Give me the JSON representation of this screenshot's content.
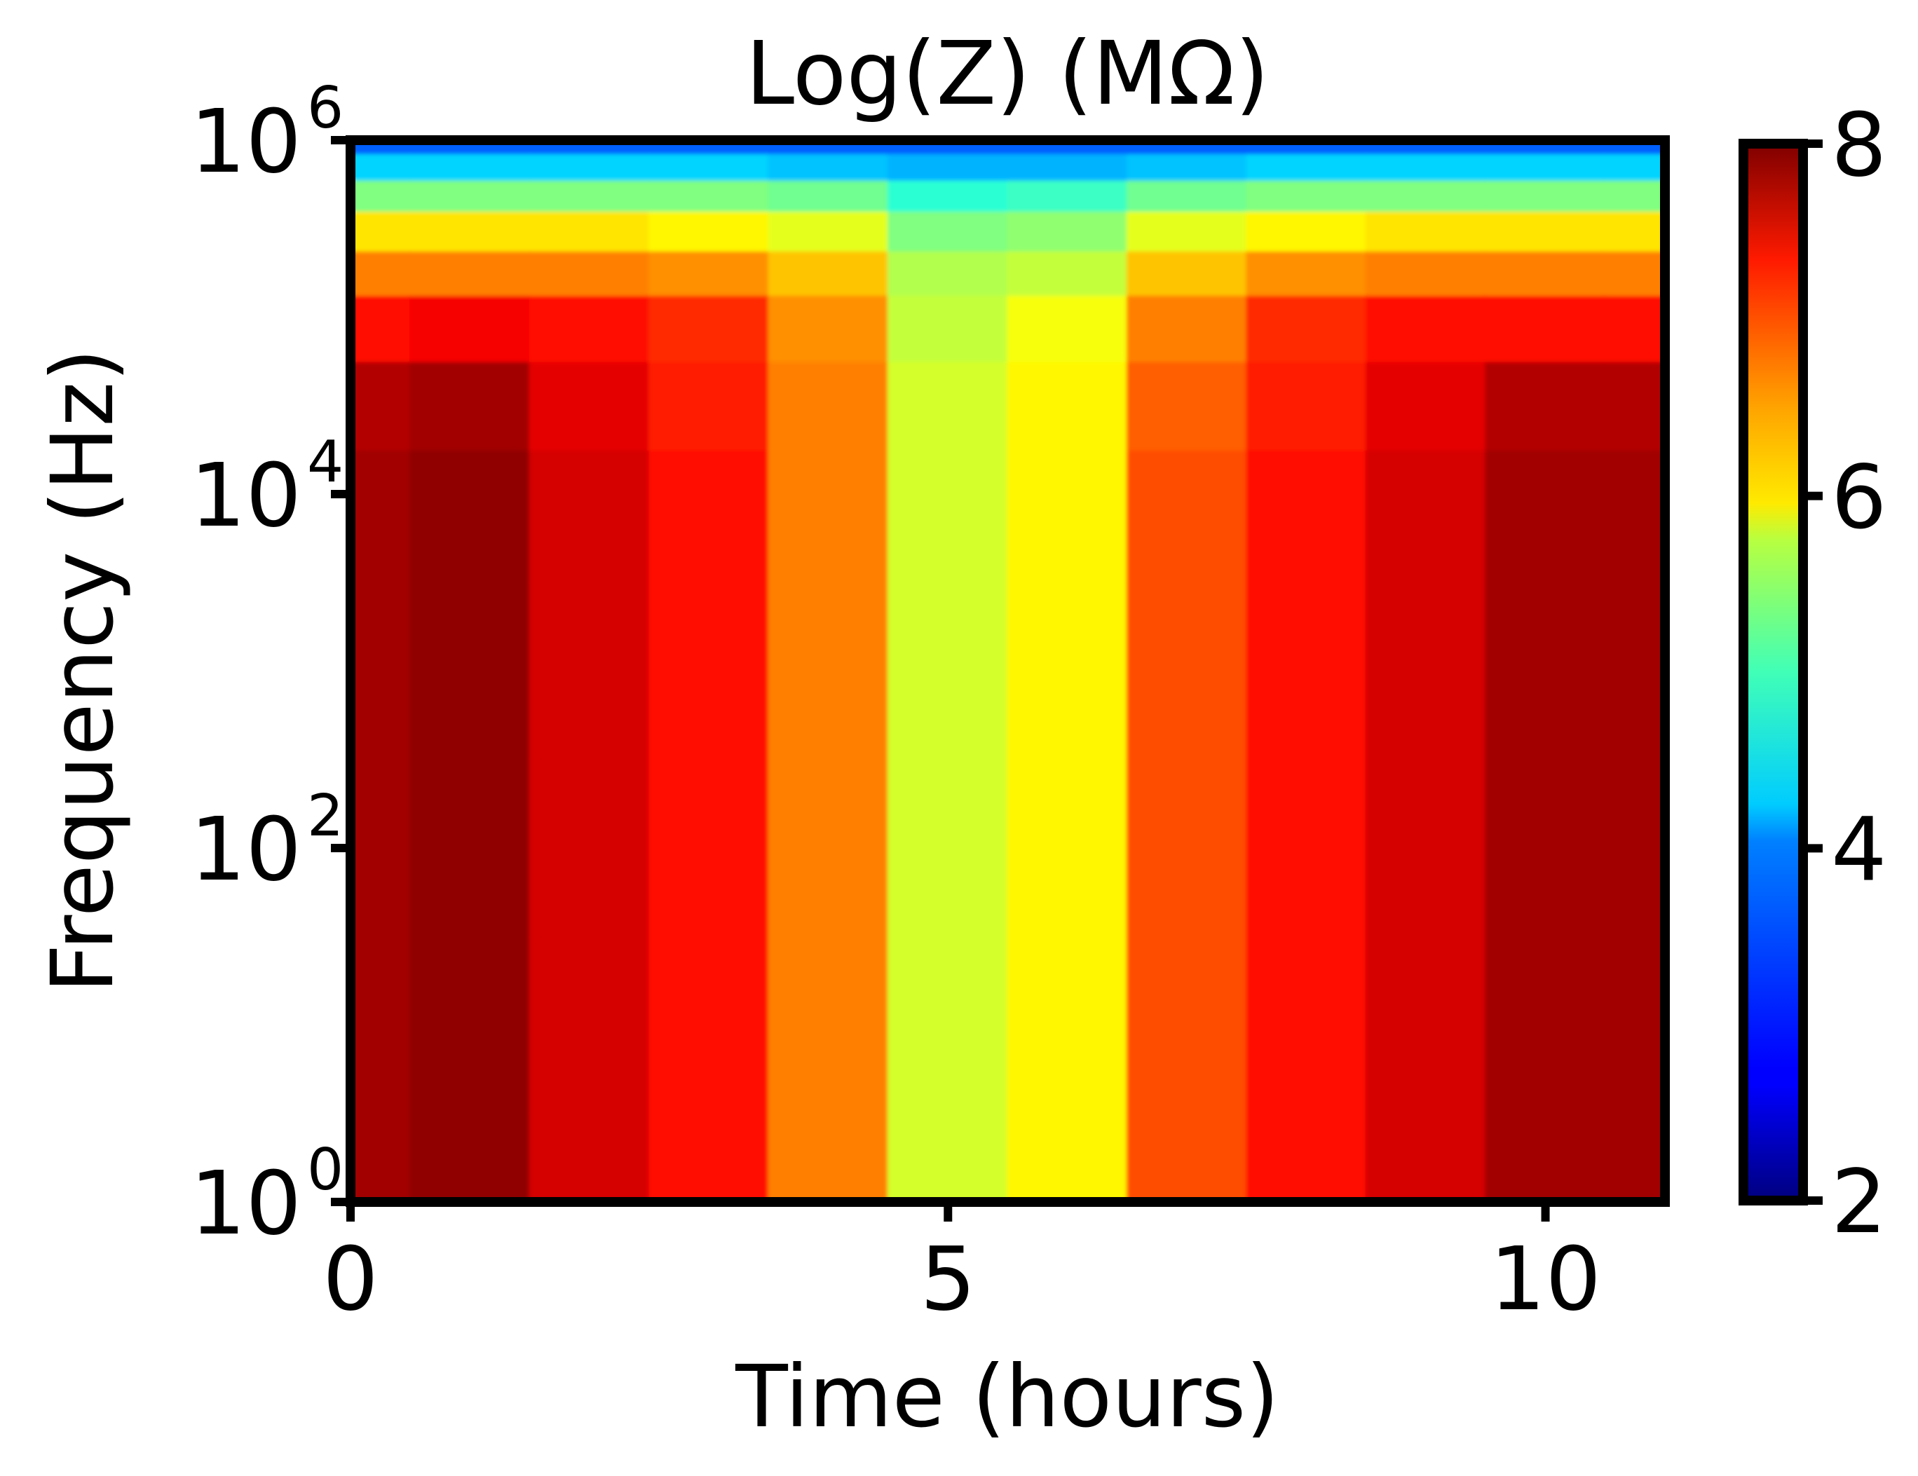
{
  "chart_data": {
    "type": "heatmap",
    "title": "Log(Z) (MΩ)",
    "xlabel": "Time (hours)",
    "ylabel": "Frequency (Hz)",
    "x_scale": "linear",
    "y_scale": "log",
    "xlim": [
      0,
      11
    ],
    "ylim_log10": [
      0,
      6
    ],
    "x_ticks": [
      {
        "value": 0,
        "label": "0"
      },
      {
        "value": 5,
        "label": "5"
      },
      {
        "value": 10,
        "label": "10"
      }
    ],
    "y_ticks": [
      {
        "exponent": 0,
        "base": "10",
        "sup": "0"
      },
      {
        "exponent": 2,
        "base": "10",
        "sup": "2"
      },
      {
        "exponent": 4,
        "base": "10",
        "sup": "4"
      },
      {
        "exponent": 6,
        "base": "10",
        "sup": "6"
      }
    ],
    "colormap": "jet",
    "colorbar": {
      "range": [
        2,
        8
      ],
      "ticks": [
        {
          "value": 2,
          "label": "2"
        },
        {
          "value": 4,
          "label": "4"
        },
        {
          "value": 6,
          "label": "6"
        },
        {
          "value": 8,
          "label": "8"
        }
      ]
    },
    "time_hours": [
      0,
      1,
      2,
      3,
      4,
      5,
      6,
      7,
      8,
      9,
      10,
      11
    ],
    "log10_frequency": [
      0,
      1,
      2,
      3,
      4,
      4.5,
      5,
      5.25,
      5.5,
      5.7,
      5.85,
      6
    ],
    "values": [
      [
        7.8,
        7.8,
        7.8,
        7.8,
        7.8,
        7.7,
        7.2,
        6.5,
        5.9,
        5.0,
        4.0,
        3.3
      ],
      [
        7.9,
        7.9,
        7.9,
        7.9,
        7.9,
        7.8,
        7.3,
        6.5,
        5.9,
        5.0,
        4.0,
        3.3
      ],
      [
        7.5,
        7.5,
        7.5,
        7.5,
        7.5,
        7.4,
        7.2,
        6.5,
        5.9,
        5.0,
        4.0,
        3.3
      ],
      [
        7.2,
        7.2,
        7.2,
        7.2,
        7.2,
        7.1,
        7.0,
        6.4,
        5.8,
        5.0,
        4.0,
        3.3
      ],
      [
        6.5,
        6.5,
        6.5,
        6.5,
        6.5,
        6.5,
        6.4,
        6.1,
        5.6,
        4.9,
        3.9,
        3.3
      ],
      [
        5.5,
        5.5,
        5.5,
        5.5,
        5.5,
        5.5,
        5.4,
        5.3,
        5.0,
        4.5,
        3.8,
        3.3
      ],
      [
        5.8,
        5.8,
        5.8,
        5.8,
        5.8,
        5.8,
        5.7,
        5.4,
        5.1,
        4.6,
        3.8,
        3.3
      ],
      [
        6.8,
        6.8,
        6.8,
        6.8,
        6.8,
        6.7,
        6.5,
        6.1,
        5.6,
        4.9,
        3.9,
        3.3
      ],
      [
        7.2,
        7.2,
        7.2,
        7.2,
        7.2,
        7.1,
        7.0,
        6.4,
        5.8,
        5.0,
        4.0,
        3.3
      ],
      [
        7.5,
        7.5,
        7.5,
        7.5,
        7.5,
        7.4,
        7.2,
        6.5,
        5.9,
        5.0,
        4.0,
        3.3
      ],
      [
        7.8,
        7.8,
        7.8,
        7.8,
        7.8,
        7.7,
        7.2,
        6.5,
        5.9,
        5.0,
        4.0,
        3.3
      ],
      [
        7.8,
        7.8,
        7.8,
        7.8,
        7.8,
        7.7,
        7.2,
        6.5,
        5.9,
        5.0,
        4.0,
        3.3
      ]
    ]
  }
}
